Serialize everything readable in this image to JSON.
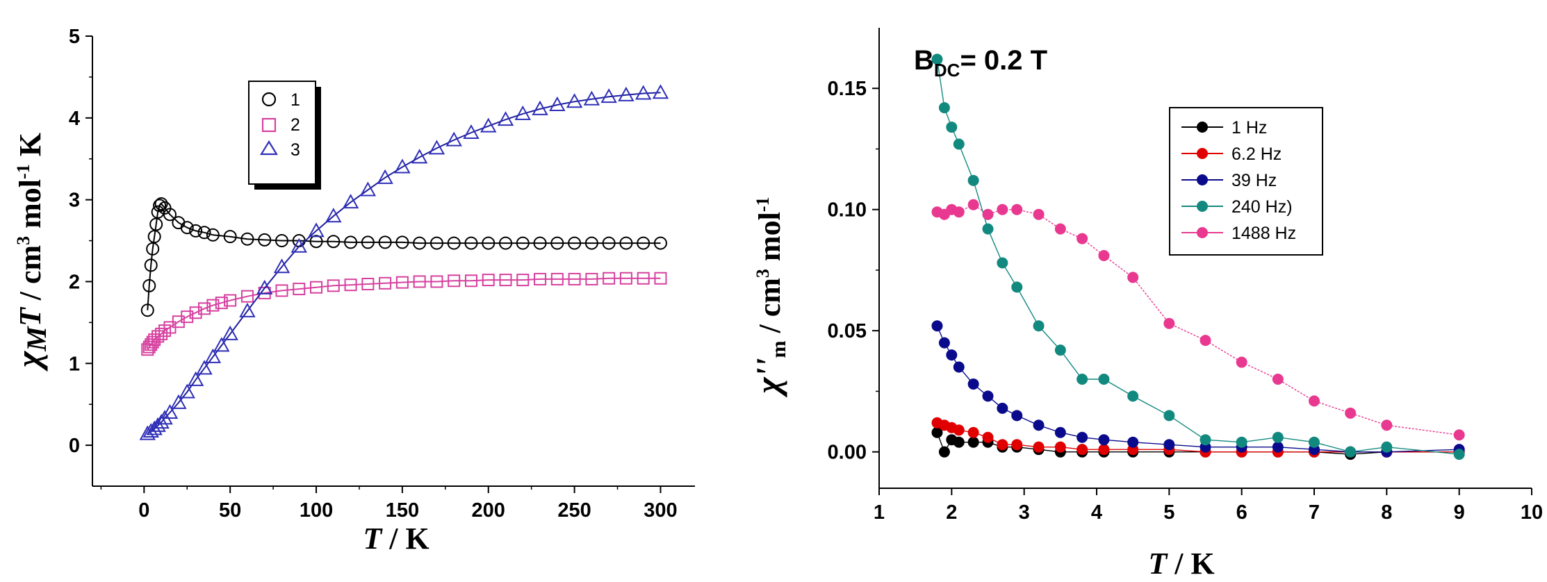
{
  "chart_data": [
    {
      "type": "scatter",
      "id": "left",
      "xlabel_italic": "T",
      "xlabel_rest": " / K",
      "ylabel_chi": "χ",
      "ylabel_sub": "M",
      "ylabel_T": "T",
      "ylabel_unit": " / cm",
      "ylabel_sup3": "3",
      "ylabel_mol": " mol",
      "ylabel_supm1": "-1",
      "ylabel_K": " K",
      "xlim": [
        -30,
        320
      ],
      "ylim": [
        -0.5,
        5
      ],
      "xticks": [
        0,
        50,
        100,
        150,
        200,
        250,
        300
      ],
      "yticks": [
        0,
        1,
        2,
        3,
        4,
        5
      ],
      "legend_position": "top-left",
      "series": [
        {
          "name": "1",
          "marker": "circle",
          "color": "#000000",
          "fit_color": "#000000",
          "x": [
            2,
            3,
            4,
            5,
            6,
            7,
            8,
            9,
            10,
            12,
            15,
            20,
            25,
            30,
            35,
            40,
            50,
            60,
            70,
            80,
            90,
            100,
            110,
            120,
            130,
            140,
            150,
            160,
            170,
            180,
            190,
            200,
            210,
            220,
            230,
            240,
            250,
            260,
            270,
            280,
            290,
            300
          ],
          "y": [
            1.65,
            1.95,
            2.2,
            2.4,
            2.55,
            2.7,
            2.85,
            2.93,
            2.95,
            2.9,
            2.82,
            2.72,
            2.66,
            2.62,
            2.6,
            2.57,
            2.55,
            2.52,
            2.51,
            2.5,
            2.5,
            2.49,
            2.49,
            2.48,
            2.48,
            2.48,
            2.48,
            2.47,
            2.47,
            2.47,
            2.47,
            2.47,
            2.47,
            2.47,
            2.47,
            2.47,
            2.47,
            2.47,
            2.47,
            2.47,
            2.47,
            2.47
          ]
        },
        {
          "name": "2",
          "marker": "square",
          "color": "#d6409f",
          "fit_color": "#d6409f",
          "x": [
            2,
            3,
            4,
            5,
            6,
            8,
            10,
            12,
            15,
            20,
            25,
            30,
            35,
            40,
            45,
            50,
            60,
            70,
            80,
            90,
            100,
            110,
            120,
            130,
            140,
            150,
            160,
            170,
            180,
            190,
            200,
            210,
            220,
            230,
            240,
            250,
            260,
            270,
            280,
            290,
            300
          ],
          "y": [
            1.17,
            1.2,
            1.23,
            1.26,
            1.29,
            1.33,
            1.36,
            1.4,
            1.44,
            1.51,
            1.57,
            1.62,
            1.67,
            1.71,
            1.74,
            1.77,
            1.82,
            1.86,
            1.89,
            1.91,
            1.93,
            1.95,
            1.96,
            1.97,
            1.98,
            1.99,
            2.0,
            2.0,
            2.01,
            2.01,
            2.02,
            2.02,
            2.02,
            2.03,
            2.03,
            2.03,
            2.03,
            2.04,
            2.04,
            2.04,
            2.04
          ]
        },
        {
          "name": "3",
          "marker": "triangle",
          "color": "#2e2eb8",
          "fit_color": "#1f1f9e",
          "x": [
            2,
            4,
            6,
            8,
            10,
            12,
            15,
            20,
            25,
            30,
            35,
            40,
            45,
            50,
            60,
            70,
            80,
            90,
            100,
            110,
            120,
            130,
            140,
            150,
            160,
            170,
            180,
            190,
            200,
            210,
            220,
            230,
            240,
            250,
            260,
            270,
            280,
            290,
            300
          ],
          "y": [
            0.14,
            0.17,
            0.2,
            0.24,
            0.28,
            0.33,
            0.4,
            0.52,
            0.65,
            0.8,
            0.94,
            1.08,
            1.22,
            1.36,
            1.64,
            1.92,
            2.18,
            2.43,
            2.62,
            2.8,
            2.97,
            3.12,
            3.27,
            3.4,
            3.52,
            3.63,
            3.73,
            3.82,
            3.9,
            3.98,
            4.05,
            4.11,
            4.16,
            4.2,
            4.23,
            4.26,
            4.28,
            4.3,
            4.31
          ]
        }
      ]
    },
    {
      "type": "line",
      "id": "right",
      "annotation_main": "B",
      "annotation_sub": "DC",
      "annotation_rest": "= 0.2 T",
      "xlabel_italic": "T",
      "xlabel_rest": " / K",
      "ylabel_chi": "χ''",
      "ylabel_sub": "m",
      "ylabel_unit": " / cm",
      "ylabel_sup3": "3",
      "ylabel_mol": " mol",
      "ylabel_supm1": "-1",
      "xlim": [
        1,
        10
      ],
      "ylim": [
        -0.015,
        0.175
      ],
      "xticks": [
        1,
        2,
        3,
        4,
        5,
        6,
        7,
        8,
        9,
        10
      ],
      "yticks": [
        0.0,
        0.05,
        0.1,
        0.15
      ],
      "ytick_labels": [
        "0.00",
        "0.05",
        "0.10",
        "0.15"
      ],
      "legend_position": "top-right",
      "series": [
        {
          "name": "1 Hz",
          "color": "#000000",
          "x": [
            1.8,
            1.9,
            2.0,
            2.1,
            2.3,
            2.5,
            2.7,
            2.9,
            3.2,
            3.5,
            3.8,
            4.1,
            4.5,
            5.0,
            5.5,
            6.0,
            6.5,
            7.0,
            7.5,
            8.0,
            9.0
          ],
          "y": [
            0.008,
            0.0,
            0.005,
            0.004,
            0.004,
            0.004,
            0.002,
            0.002,
            0.001,
            0.0,
            0.0,
            0.0,
            0.0,
            0.0,
            0.0,
            0.0,
            0.0,
            0.0,
            -0.001,
            0.0,
            0.0
          ]
        },
        {
          "name": "6.2 Hz",
          "color": "#e00000",
          "x": [
            1.8,
            1.9,
            2.0,
            2.1,
            2.3,
            2.5,
            2.7,
            2.9,
            3.2,
            3.5,
            3.8,
            4.1,
            4.5,
            5.0,
            5.5,
            6.0,
            6.5,
            7.0,
            7.5,
            8.0,
            9.0
          ],
          "y": [
            0.012,
            0.011,
            0.01,
            0.009,
            0.008,
            0.006,
            0.003,
            0.003,
            0.002,
            0.002,
            0.001,
            0.001,
            0.001,
            0.001,
            0.0,
            0.0,
            0.0,
            0.0,
            0.0,
            0.0,
            0.0
          ]
        },
        {
          "name": "39 Hz",
          "color": "#0a0a8c",
          "x": [
            1.8,
            1.9,
            2.0,
            2.1,
            2.3,
            2.5,
            2.7,
            2.9,
            3.2,
            3.5,
            3.8,
            4.1,
            4.5,
            5.0,
            5.5,
            6.0,
            6.5,
            7.0,
            7.5,
            8.0,
            9.0
          ],
          "y": [
            0.052,
            0.045,
            0.04,
            0.035,
            0.028,
            0.023,
            0.018,
            0.015,
            0.011,
            0.008,
            0.006,
            0.005,
            0.004,
            0.003,
            0.002,
            0.002,
            0.002,
            0.001,
            0.0,
            0.0,
            0.001
          ]
        },
        {
          "name": "240 Hz)",
          "color": "#12897f",
          "x": [
            1.8,
            1.9,
            2.0,
            2.1,
            2.3,
            2.5,
            2.7,
            2.9,
            3.2,
            3.5,
            3.8,
            4.1,
            4.5,
            5.0,
            5.5,
            6.0,
            6.5,
            7.0,
            7.5,
            8.0,
            9.0
          ],
          "y": [
            0.162,
            0.142,
            0.134,
            0.127,
            0.112,
            0.092,
            0.078,
            0.068,
            0.052,
            0.042,
            0.03,
            0.03,
            0.023,
            0.015,
            0.005,
            0.004,
            0.006,
            0.004,
            0.0,
            0.002,
            -0.001
          ]
        },
        {
          "name": "1488 Hz",
          "color": "#e8388f",
          "x": [
            1.8,
            1.9,
            2.0,
            2.1,
            2.3,
            2.5,
            2.7,
            2.9,
            3.2,
            3.5,
            3.8,
            4.1,
            4.5,
            5.0,
            5.5,
            6.0,
            6.5,
            7.0,
            7.5,
            8.0,
            9.0
          ],
          "y": [
            0.099,
            0.098,
            0.1,
            0.099,
            0.102,
            0.098,
            0.1,
            0.1,
            0.098,
            0.092,
            0.088,
            0.081,
            0.072,
            0.053,
            0.046,
            0.037,
            0.03,
            0.021,
            0.016,
            0.011,
            0.007
          ]
        }
      ]
    }
  ]
}
